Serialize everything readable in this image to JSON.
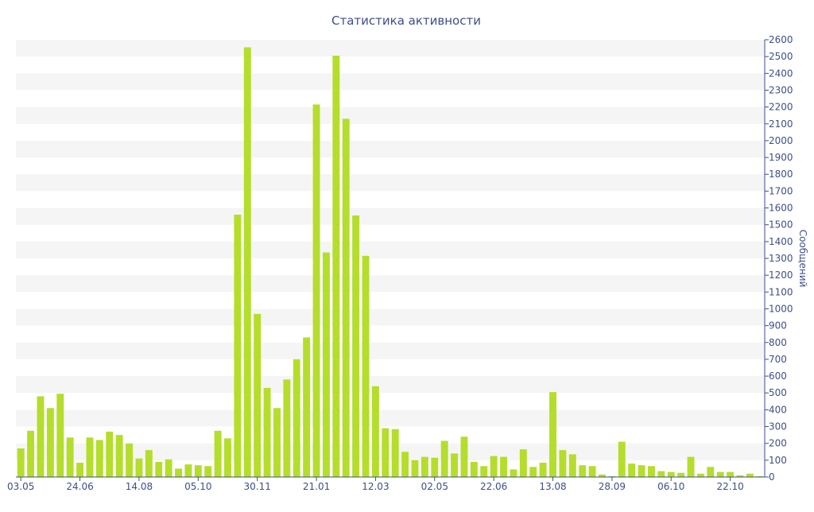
{
  "chart_data": {
    "type": "bar",
    "title": "Статистика активности",
    "ylabel": "Сообщений",
    "ylim": [
      0,
      2600
    ],
    "y_ticks": [
      0,
      100,
      200,
      300,
      400,
      500,
      600,
      700,
      800,
      900,
      1000,
      1100,
      1200,
      1300,
      1400,
      1500,
      1600,
      1700,
      1800,
      1900,
      2000,
      2100,
      2200,
      2300,
      2400,
      2500,
      2600
    ],
    "x_tick_labels": [
      {
        "index": 0,
        "label": "03.05"
      },
      {
        "index": 6,
        "label": "24.06"
      },
      {
        "index": 12,
        "label": "14.08"
      },
      {
        "index": 18,
        "label": "05.10"
      },
      {
        "index": 24,
        "label": "30.11"
      },
      {
        "index": 30,
        "label": "21.01"
      },
      {
        "index": 36,
        "label": "12.03"
      },
      {
        "index": 42,
        "label": "02.05"
      },
      {
        "index": 48,
        "label": "22.06"
      },
      {
        "index": 54,
        "label": "13.08"
      },
      {
        "index": 60,
        "label": "28.09"
      },
      {
        "index": 66,
        "label": "06.10"
      },
      {
        "index": 72,
        "label": "22.10"
      }
    ],
    "values": [
      170,
      275,
      480,
      410,
      495,
      235,
      85,
      235,
      220,
      270,
      250,
      200,
      110,
      160,
      90,
      105,
      50,
      75,
      70,
      65,
      275,
      230,
      1560,
      2555,
      970,
      530,
      410,
      580,
      700,
      830,
      2215,
      1335,
      2505,
      2130,
      1555,
      1315,
      540,
      290,
      285,
      150,
      100,
      120,
      115,
      215,
      140,
      240,
      90,
      65,
      125,
      120,
      45,
      165,
      60,
      85,
      505,
      160,
      135,
      70,
      65,
      15,
      5,
      210,
      80,
      70,
      65,
      35,
      30,
      25,
      120,
      20,
      60,
      30,
      30,
      10,
      20,
      5
    ],
    "grid": true,
    "bar_color": "#b5dd2c",
    "text_color": "#3d4e8c",
    "grid_band_color": "#f5f5f5"
  }
}
